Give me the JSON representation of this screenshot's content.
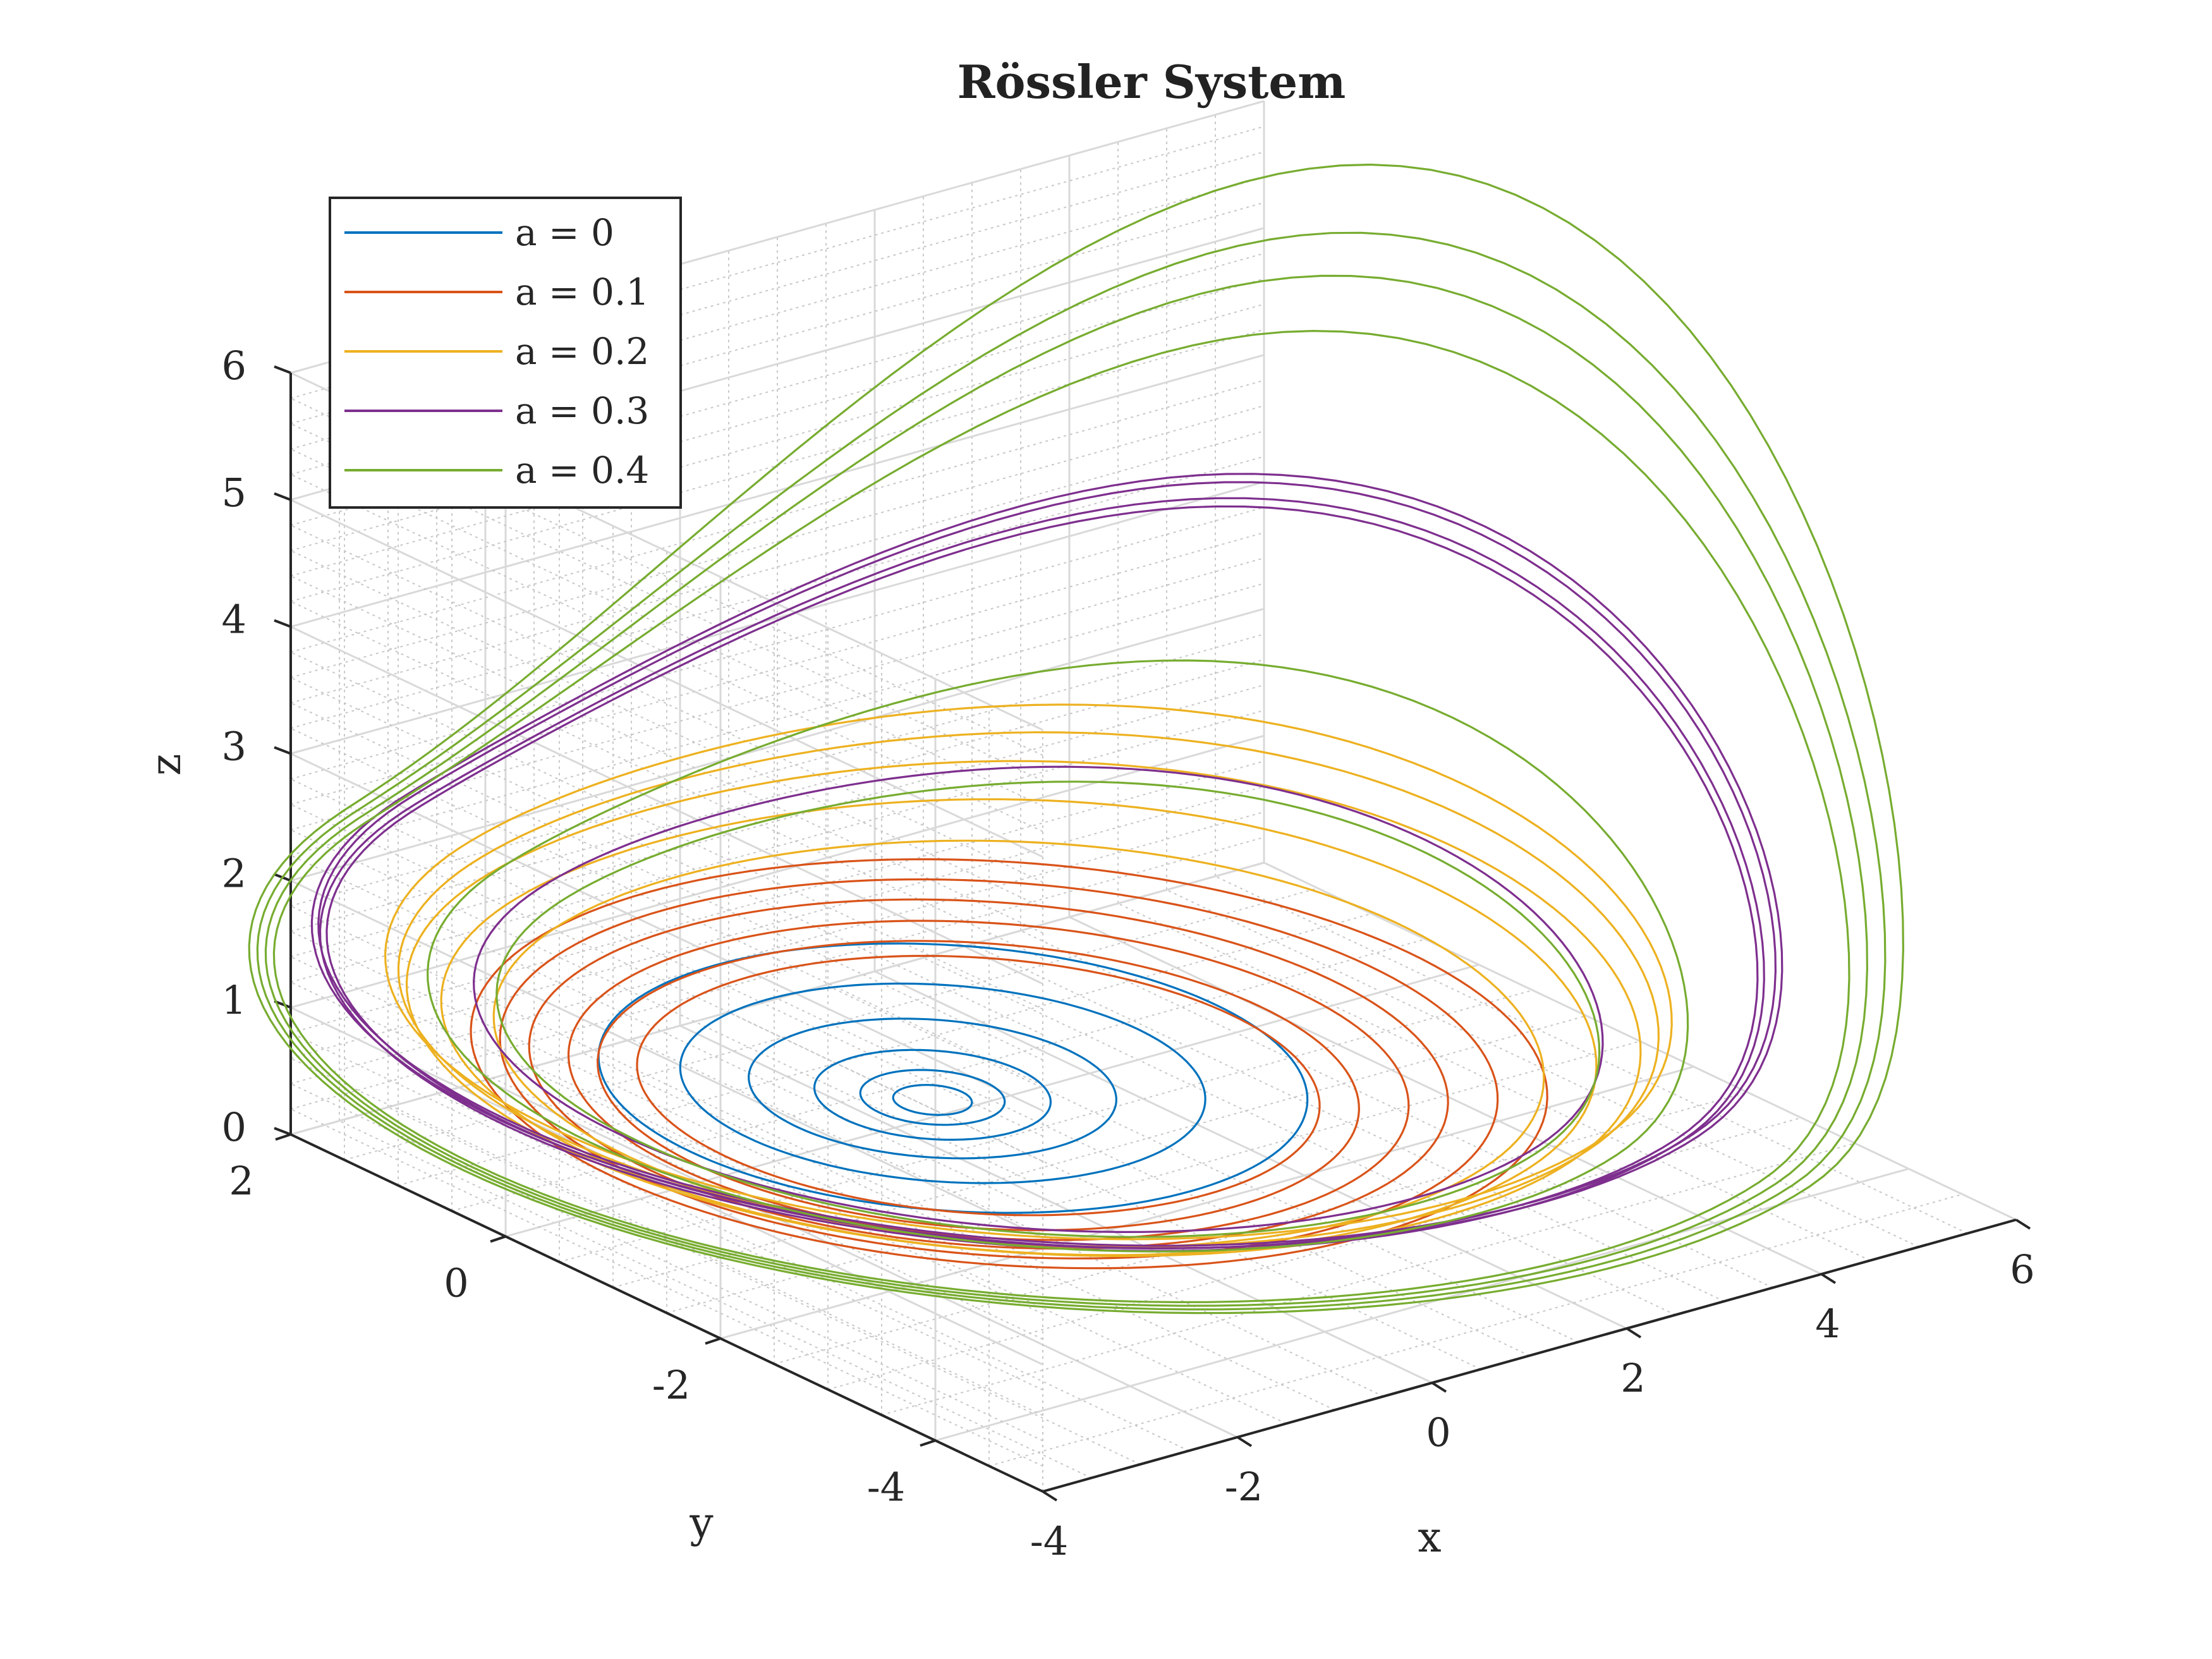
{
  "chart_data": {
    "type": "line",
    "projection": "3d",
    "title": "Rössler System",
    "xlabel": "x",
    "ylabel": "y",
    "zlabel": "z",
    "xlim": [
      -4,
      6
    ],
    "ylim": [
      -5,
      2
    ],
    "zlim": [
      0,
      6
    ],
    "xticks": [
      "-4",
      "-2",
      "0",
      "2",
      "4",
      "6"
    ],
    "yticks": [
      "2",
      "0",
      "-2",
      "-4"
    ],
    "zticks": [
      "0",
      "1",
      "2",
      "3",
      "4",
      "5",
      "6"
    ],
    "grid": true,
    "minor_grid": true,
    "legend_position": "top-left",
    "series": [
      {
        "name": "a = 0",
        "a": 0,
        "color": "#0072BD",
        "turns": [
          {
            "cx": 0.1,
            "cy": -0.45,
            "r": 2.7,
            "z": 0.55
          },
          {
            "cx": 0.05,
            "cy": -0.4,
            "r": 2.0,
            "z": 0.5
          },
          {
            "cx": 0.0,
            "cy": -0.35,
            "r": 1.4,
            "z": 0.45
          },
          {
            "cx": 0.0,
            "cy": -0.35,
            "r": 0.9,
            "z": 0.4
          },
          {
            "cx": 0.0,
            "cy": -0.35,
            "r": 0.55,
            "z": 0.38
          },
          {
            "cx": 0.0,
            "cy": -0.35,
            "r": 0.3,
            "z": 0.36
          }
        ]
      },
      {
        "name": "a = 0.1",
        "a": 0.1,
        "color": "#D95319",
        "turns": [
          {
            "cx": 0.4,
            "cy": -0.7,
            "r": 4.1,
            "z": 0.7
          },
          {
            "cx": 0.35,
            "cy": -0.65,
            "r": 3.8,
            "z": 0.65
          },
          {
            "cx": 0.3,
            "cy": -0.6,
            "r": 3.5,
            "z": 0.6
          },
          {
            "cx": 0.3,
            "cy": -0.6,
            "r": 3.2,
            "z": 0.55
          },
          {
            "cx": 0.25,
            "cy": -0.55,
            "r": 2.9,
            "z": 0.5
          },
          {
            "cx": 0.25,
            "cy": -0.55,
            "r": 2.6,
            "z": 0.5
          }
        ]
      },
      {
        "name": "a = 0.2",
        "a": 0.2,
        "color": "#EDB120",
        "turns": [
          {
            "cx": 0.6,
            "cy": -0.7,
            "r": 4.9,
            "z": 1.2,
            "peak": 0.5
          },
          {
            "cx": 0.6,
            "cy": -0.7,
            "r": 4.8,
            "z": 1.1,
            "peak": 0.4
          },
          {
            "cx": 0.55,
            "cy": -0.7,
            "r": 4.7,
            "z": 1.0,
            "peak": 0.3
          },
          {
            "cx": 0.5,
            "cy": -0.7,
            "r": 4.4,
            "z": 0.9,
            "peak": 0.2
          },
          {
            "cx": 0.5,
            "cy": -0.7,
            "r": 4.0,
            "z": 0.8,
            "peak": 0.1
          }
        ]
      },
      {
        "name": "a = 0.3",
        "a": 0.3,
        "color": "#7E2F8E",
        "turns": [
          {
            "cx": 0.9,
            "cy": -0.6,
            "r": 5.6,
            "z": 1.3,
            "peak": 2.0
          },
          {
            "cx": 0.9,
            "cy": -0.6,
            "r": 5.55,
            "z": 1.3,
            "peak": 1.95
          },
          {
            "cx": 0.85,
            "cy": -0.6,
            "r": 5.5,
            "z": 1.25,
            "peak": 1.9
          },
          {
            "cx": 0.85,
            "cy": -0.6,
            "r": 5.45,
            "z": 1.25,
            "peak": 1.85
          },
          {
            "cx": 0.7,
            "cy": -0.7,
            "r": 4.3,
            "z": 1.0,
            "peak": 0.4
          }
        ]
      },
      {
        "name": "a = 0.4",
        "a": 0.4,
        "color": "#77AC30",
        "turns": [
          {
            "cx": 1.2,
            "cy": -0.6,
            "r": 6.3,
            "z": 1.0,
            "peak": 4.5
          },
          {
            "cx": 1.15,
            "cy": -0.6,
            "r": 6.2,
            "z": 1.0,
            "peak": 4.0
          },
          {
            "cx": 1.1,
            "cy": -0.6,
            "r": 6.1,
            "z": 1.0,
            "peak": 3.7
          },
          {
            "cx": 1.05,
            "cy": -0.6,
            "r": 6.0,
            "z": 1.0,
            "peak": 3.3
          },
          {
            "cx": 0.9,
            "cy": -0.7,
            "r": 4.8,
            "z": 1.0,
            "peak": 1.1
          },
          {
            "cx": 0.8,
            "cy": -0.7,
            "r": 4.2,
            "z": 0.9,
            "peak": 0.4
          }
        ]
      }
    ]
  }
}
